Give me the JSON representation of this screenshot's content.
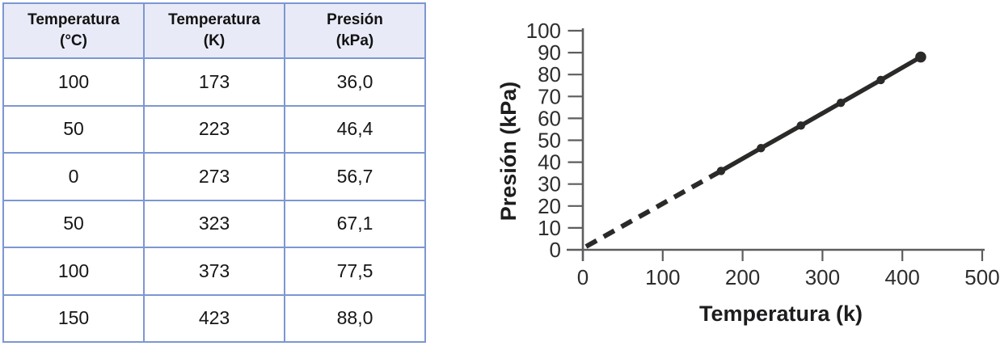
{
  "table": {
    "columns": [
      {
        "label": "Temperatura",
        "unit": "(°C)"
      },
      {
        "label": "Temperatura",
        "unit": "(K)"
      },
      {
        "label": "Presión",
        "unit": "(kPa)"
      }
    ],
    "rows": [
      [
        "100",
        "173",
        "36,0"
      ],
      [
        "50",
        "223",
        "46,4"
      ],
      [
        "0",
        "273",
        "56,7"
      ],
      [
        "50",
        "323",
        "67,1"
      ],
      [
        "100",
        "373",
        "77,5"
      ],
      [
        "150",
        "423",
        "88,0"
      ]
    ]
  },
  "chart_data": {
    "type": "line",
    "title": "",
    "xlabel": "Temperatura (k)",
    "ylabel": "Presión (kPa)",
    "xlim": [
      0,
      500
    ],
    "ylim": [
      0,
      100
    ],
    "x_ticks": [
      0,
      100,
      200,
      300,
      400,
      500
    ],
    "y_ticks": [
      0,
      10,
      20,
      30,
      40,
      50,
      60,
      70,
      80,
      90,
      100
    ],
    "grid": false,
    "legend": false,
    "series": [
      {
        "name": "datos-medidos",
        "style": "solid",
        "marker": "circle",
        "points": [
          [
            173,
            36.0
          ],
          [
            223,
            46.4
          ],
          [
            273,
            56.7
          ],
          [
            323,
            67.1
          ],
          [
            373,
            77.5
          ],
          [
            423,
            88.0
          ]
        ]
      },
      {
        "name": "extrapolacion",
        "style": "dashed",
        "marker": "none",
        "points": [
          [
            4,
            1.5
          ],
          [
            173,
            36.0
          ]
        ]
      }
    ],
    "colors": {
      "line": "#2b2a29",
      "axis": "#5d5d60",
      "tick_label": "#2d2d2f"
    }
  }
}
